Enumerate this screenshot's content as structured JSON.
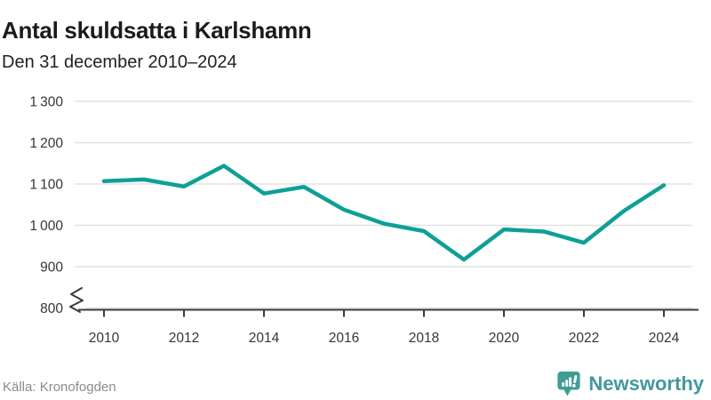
{
  "header": {
    "title": "Antal skuldsatta i Karlshamn",
    "subtitle": "Den 31 december 2010–2024"
  },
  "chart_data": {
    "type": "line",
    "title": "Antal skuldsatta i Karlshamn",
    "subtitle": "Den 31 december 2010–2024",
    "x": [
      2010,
      2011,
      2012,
      2013,
      2014,
      2015,
      2016,
      2017,
      2018,
      2019,
      2020,
      2021,
      2022,
      2023,
      2024
    ],
    "series": [
      {
        "name": "Antal skuldsatta",
        "values": [
          1107,
          1111,
          1094,
          1144,
          1077,
          1093,
          1038,
          1004,
          986,
          917,
          990,
          985,
          958,
          1035,
          1097
        ],
        "color": "#0EA096"
      }
    ],
    "xticks": [
      2010,
      2012,
      2014,
      2016,
      2018,
      2020,
      2022,
      2024
    ],
    "yticks": [
      800,
      900,
      1000,
      1100,
      1200,
      1300
    ],
    "ylim": [
      800,
      1300
    ],
    "xlabel": "",
    "ylabel": "",
    "grid": true,
    "legend": "none",
    "y_axis_break": true
  },
  "footer": {
    "source": "Källa: Kronofogden",
    "brand": "Newsworthy"
  },
  "colors": {
    "line": "#0EA096",
    "grid": "#E2E2E2",
    "axis": "#3B3B3B",
    "tick_text": "#363636",
    "title_text": "#1B1B1B",
    "muted_text": "#8B8B8B",
    "logo_icon": "#3E9D96",
    "logo_text": "#43989D"
  }
}
